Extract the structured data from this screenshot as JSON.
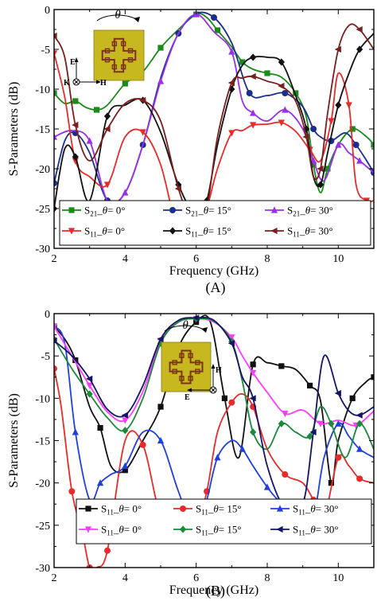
{
  "chart_data": [
    {
      "type": "line",
      "panel_label": "(A)",
      "xlabel": "Frequency (GHz)",
      "ylabel": "S-Parameters (dB)",
      "xlim": [
        2,
        11
      ],
      "ylim": [
        -30,
        0
      ],
      "xticks": [
        "2",
        "4",
        "6",
        "8",
        "10"
      ],
      "yticks": [
        "0",
        "-5",
        "-10",
        "-15",
        "-20",
        "-25",
        "-30"
      ],
      "inset_labels": {
        "rotation": "θ",
        "e_field": "E",
        "h_field": "H",
        "k_vector": "K"
      },
      "series": [
        {
          "name": "S21_θ= 0°",
          "legend_sub": "21",
          "legend_angle": "θ= 0°",
          "color": "#1a8a1a",
          "marker": "square",
          "x": [
            2,
            2.3,
            2.6,
            2.9,
            3.2,
            3.5,
            4,
            4.5,
            5,
            5.5,
            6,
            6.3,
            6.6,
            7,
            7.3,
            7.6,
            8,
            8.4,
            8.8,
            9.1,
            9.3,
            9.5,
            9.7,
            10,
            10.4,
            10.8,
            11
          ],
          "y": [
            -10.5,
            -11.8,
            -11.5,
            -12.3,
            -12.6,
            -12,
            -9.3,
            -7.8,
            -4.8,
            -2.5,
            -0.6,
            -1,
            -2.6,
            -4.7,
            -6.6,
            -7.5,
            -8,
            -8.5,
            -10.5,
            -13.5,
            -19.5,
            -23,
            -20,
            -17,
            -15,
            -16,
            -17
          ]
        },
        {
          "name": "S21_θ= 15°",
          "legend_sub": "21",
          "legend_angle": "θ= 15°",
          "color": "#1a2f8c",
          "marker": "circle",
          "x": [
            2,
            2.3,
            2.6,
            3,
            3.5,
            4,
            4.5,
            5,
            5.5,
            6,
            6.5,
            7,
            7.5,
            8,
            8.5,
            9,
            9.3,
            9.5,
            9.8,
            10.2,
            10.5,
            10.8,
            11
          ],
          "y": [
            -21.8,
            -16.5,
            -15.5,
            -18,
            -24,
            -23,
            -17,
            -8.6,
            -3,
            -0.5,
            -1,
            -4.2,
            -10.5,
            -10.8,
            -10.5,
            -12.2,
            -15,
            -16,
            -16.5,
            -15.5,
            -17,
            -19,
            -20.5
          ]
        },
        {
          "name": "S21_θ= 30°",
          "legend_sub": "21",
          "legend_angle": "θ= 30°",
          "color": "#9a30e8",
          "marker": "triangle-up",
          "x": [
            2,
            2.5,
            3,
            3.5,
            4,
            4.5,
            5,
            5.5,
            6,
            6.5,
            7,
            7.3,
            7.6,
            8,
            8.5,
            9,
            9.3,
            9.6,
            10,
            10.3,
            10.6,
            11
          ],
          "y": [
            -16,
            -15.2,
            -16.5,
            -24,
            -23,
            -17,
            -9,
            -3,
            -0.6,
            -2.8,
            -5.3,
            -11.5,
            -13,
            -14,
            -12.6,
            -15,
            -19,
            -21.5,
            -17,
            -18,
            -19,
            -20.5
          ]
        },
        {
          "name": "S11_θ= 0°",
          "legend_sub": "11",
          "legend_angle": "θ= 0°",
          "color": "#e82a2a",
          "marker": "triangle-down",
          "x": [
            2,
            2.3,
            2.6,
            3,
            3.5,
            4,
            4.5,
            5,
            5.5,
            6,
            6.3,
            6.6,
            7,
            7.3,
            7.6,
            8,
            8.4,
            8.8,
            9.2,
            9.5,
            9.8,
            10,
            10.3,
            10.5,
            10.8,
            11
          ],
          "y": [
            -5.5,
            -11,
            -19,
            -21,
            -22,
            -16,
            -15.4,
            -19.5,
            -28,
            -29,
            -25,
            -20,
            -15.5,
            -15.2,
            -14.5,
            -14.4,
            -14.2,
            -15.3,
            -17.6,
            -19,
            -14,
            -8,
            -12,
            -22,
            -24,
            -24
          ]
        },
        {
          "name": "S11_θ= 15°",
          "legend_sub": "11",
          "legend_angle": "θ= 15°",
          "color": "#111111",
          "marker": "diamond",
          "x": [
            2,
            2.3,
            2.6,
            3,
            3.5,
            4,
            4.5,
            5,
            5.5,
            6,
            6.3,
            6.6,
            7,
            7.3,
            7.6,
            8,
            8.4,
            8.8,
            9.1,
            9.3,
            9.5,
            9.7,
            10,
            10.3,
            10.6,
            11
          ],
          "y": [
            -25,
            -17.5,
            -18.5,
            -24,
            -13.4,
            -12,
            -11.4,
            -15.4,
            -22,
            -26,
            -24,
            -17,
            -10,
            -7,
            -6,
            -6,
            -6.6,
            -10.8,
            -15,
            -21,
            -22,
            -18,
            -12,
            -8,
            -5,
            -3
          ]
        },
        {
          "name": "S11_θ= 30°",
          "legend_sub": "11",
          "legend_angle": "θ= 30°",
          "color": "#7a1e1e",
          "marker": "triangle-left",
          "x": [
            2,
            2.3,
            2.6,
            3,
            3.5,
            4,
            4.5,
            5,
            5.5,
            6,
            6.3,
            6.6,
            7,
            7.3,
            7.6,
            8,
            8.4,
            8.8,
            9.1,
            9.3,
            9.5,
            9.7,
            10,
            10.3,
            10.6,
            11
          ],
          "y": [
            -3.3,
            -6,
            -14.5,
            -19,
            -15,
            -11.8,
            -11.4,
            -14,
            -22.5,
            -28,
            -25,
            -16,
            -9.2,
            -8.6,
            -8.4,
            -9,
            -9.6,
            -11.5,
            -16,
            -21,
            -20,
            -13,
            -5,
            -2,
            -2.5,
            -5
          ]
        }
      ]
    },
    {
      "type": "line",
      "panel_label": "(B)",
      "xlabel": "Frequency (GHz)",
      "ylabel": "S-Parameters (dB)",
      "xlim": [
        2,
        11
      ],
      "ylim": [
        -30,
        0
      ],
      "xticks": [
        "2",
        "4",
        "6",
        "8",
        "10"
      ],
      "yticks": [
        "0",
        "-5",
        "-10",
        "-15",
        "-20",
        "-25",
        "-30"
      ],
      "inset_labels": {
        "rotation": "θ",
        "e_field": "E",
        "h_field": "H"
      },
      "series": [
        {
          "name": "S11_θ= 0°",
          "legend_sub": "11",
          "legend_angle": "θ= 0°",
          "color": "#111111",
          "marker": "square",
          "x": [
            2,
            2.3,
            2.6,
            3,
            3.3,
            3.6,
            4,
            4.5,
            5,
            5.5,
            6,
            6.4,
            6.8,
            7.2,
            7.6,
            8,
            8.4,
            8.8,
            9.2,
            9.5,
            9.8,
            10,
            10.4,
            10.8,
            11
          ],
          "y": [
            -1.5,
            -3,
            -5.5,
            -11,
            -13.5,
            -18,
            -18.5,
            -15,
            -11,
            -4,
            -1,
            -1,
            -10,
            -17,
            -6,
            -5.8,
            -6.2,
            -6.6,
            -8.5,
            -10.3,
            -20,
            -15,
            -10,
            -8,
            -7.5
          ]
        },
        {
          "name": "S11_θ= 15°",
          "legend_sub": "11",
          "legend_angle": "θ= 15°",
          "color": "#e82a2a",
          "marker": "circle",
          "x": [
            2,
            2.2,
            2.5,
            2.8,
            3,
            3.2,
            3.5,
            4,
            4.5,
            5,
            5.5,
            6,
            6.3,
            6.6,
            7,
            7.3,
            7.6,
            8,
            8.5,
            9,
            9.3,
            9.6,
            10,
            10.3,
            10.6,
            11
          ],
          "y": [
            -6.5,
            -11,
            -21,
            -26,
            -30,
            -30,
            -28,
            -15,
            -15.5,
            -24,
            -26,
            -25,
            -21,
            -14,
            -10.5,
            -9.5,
            -11,
            -16,
            -19,
            -20,
            -22,
            -24,
            -17,
            -18,
            -19.5,
            -20
          ]
        },
        {
          "name": "S11_θ= 30°",
          "legend_sub": "11",
          "legend_angle": "θ= 30°",
          "color": "#1f3fe0",
          "marker": "triangle-up",
          "x": [
            2,
            2.3,
            2.6,
            3,
            3.3,
            3.6,
            4,
            4.5,
            5,
            5.5,
            6,
            6.3,
            6.6,
            7,
            7.3,
            7.6,
            8,
            8.3,
            8.6,
            9,
            9.3,
            9.6,
            10,
            10.3,
            10.6,
            11
          ],
          "y": [
            -1.5,
            -3.5,
            -14,
            -22,
            -20,
            -19,
            -18,
            -14,
            -15,
            -21,
            -26,
            -22,
            -17,
            -15,
            -16,
            -18,
            -20.5,
            -22,
            -23,
            -22.5,
            -24,
            -17,
            -13,
            -14.5,
            -16,
            -17
          ]
        },
        {
          "name": "S11_θ= 0°",
          "legend_sub": "11",
          "legend_angle": "θ= 0°",
          "color": "#ff3cff",
          "marker": "triangle-down",
          "x": [
            2,
            2.5,
            3,
            3.5,
            4,
            4.5,
            5,
            5.5,
            6,
            6.5,
            7,
            7.3,
            7.6,
            8,
            8.5,
            9,
            9.5,
            10,
            10.5,
            11
          ],
          "y": [
            -1.5,
            -5,
            -8.5,
            -11.6,
            -12.6,
            -9.2,
            -3.2,
            -1,
            -0.6,
            -1,
            -2.8,
            -5,
            -7,
            -9.3,
            -11.8,
            -11.4,
            -13,
            -12.6,
            -13.2,
            -11.5
          ]
        },
        {
          "name": "S11_θ= 15°",
          "legend_sub": "11",
          "legend_angle": "θ= 15°",
          "color": "#1a8a3a",
          "marker": "diamond",
          "x": [
            2,
            2.5,
            3,
            3.5,
            4,
            4.5,
            5,
            5.5,
            6,
            6.5,
            7,
            7.3,
            7.6,
            8,
            8.4,
            8.8,
            9.2,
            9.5,
            9.8,
            10.2,
            10.6,
            11
          ],
          "y": [
            -3,
            -6.5,
            -9.5,
            -12.3,
            -13.8,
            -10,
            -3.5,
            -1,
            -0.6,
            -0.9,
            -3.3,
            -8,
            -14,
            -16,
            -13,
            -14,
            -14.5,
            -11,
            -13,
            -17,
            -13,
            -16
          ]
        },
        {
          "name": "S11_θ= 30°",
          "legend_sub": "11",
          "legend_angle": "θ= 30°",
          "color": "#141466",
          "marker": "triangle-left",
          "x": [
            2,
            2.5,
            3,
            3.5,
            4,
            4.5,
            5,
            5.5,
            6,
            6.5,
            7,
            7.3,
            7.6,
            8,
            8.5,
            9,
            9.3,
            9.6,
            10,
            10.3,
            10.6,
            11
          ],
          "y": [
            -3.2,
            -5,
            -7.7,
            -11.3,
            -12,
            -8.5,
            -3,
            -0.8,
            -0.5,
            -0.8,
            -3.5,
            -7.5,
            -10,
            -18,
            -23,
            -22.5,
            -14,
            -5,
            -9.4,
            -11.5,
            -12,
            -11
          ]
        }
      ]
    }
  ]
}
